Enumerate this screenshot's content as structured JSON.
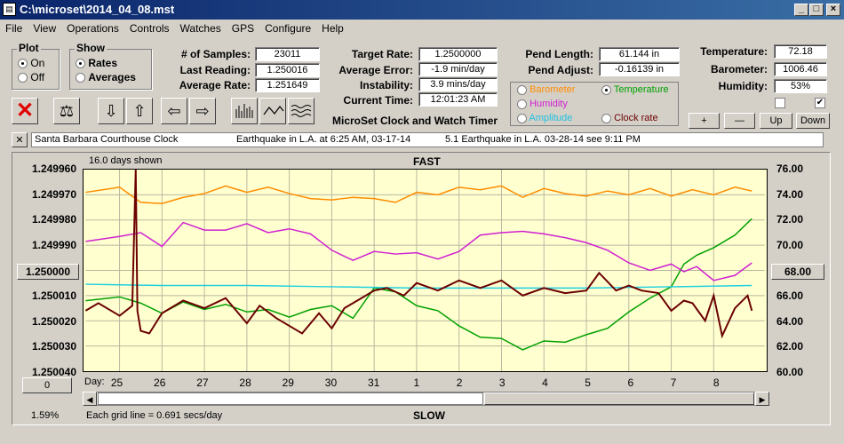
{
  "window": {
    "title": "C:\\microset\\2014_04_08.mst"
  },
  "menu": [
    "File",
    "View",
    "Operations",
    "Controls",
    "Watches",
    "GPS",
    "Configure",
    "Help"
  ],
  "plot_group": {
    "title": "Plot",
    "on": "On",
    "off": "Off"
  },
  "show_group": {
    "title": "Show",
    "rates": "Rates",
    "averages": "Averages"
  },
  "stats": {
    "samples_label": "# of Samples:",
    "samples": "23011",
    "last_label": "Last Reading:",
    "last": "1.250016",
    "avg_label": "Average Rate:",
    "avg": "1.251649"
  },
  "rates": {
    "target_label": "Target Rate:",
    "target": "1.2500000",
    "error_label": "Average Error:",
    "error": "-1.9 min/day",
    "instab_label": "Instability:",
    "instab": "3.9 mins/day",
    "time_label": "Current Time:",
    "time": "12:01:23 AM"
  },
  "pend": {
    "length_label": "Pend Length:",
    "length": "61.144 in",
    "adjust_label": "Pend Adjust:",
    "adjust": "-0.16139 in"
  },
  "env": {
    "temp_label": "Temperature:",
    "temp": "72.18",
    "baro_label": "Barometer:",
    "baro": "1006.46",
    "hum_label": "Humidity:",
    "hum": "53%"
  },
  "sensor_select": {
    "barometer": "Barometer",
    "temperature": "Temperature",
    "humidity": "Humidity",
    "amplitude": "Amplitude",
    "clock_rate": "Clock rate"
  },
  "app_title": "MicroSet Clock and Watch Timer",
  "adjust_buttons": {
    "plus": "+",
    "minus": "—",
    "up": "Up",
    "down": "Down"
  },
  "notes": {
    "clock": "Santa Barbara Courthouse Clock",
    "note1": "Earthquake in L.A. at 6:25 AM, 03-17-14",
    "note2": "5.1 Earthquake in L.A. 03-28-14  see 9:11 PM",
    "close": "✕"
  },
  "chart_labels": {
    "days_shown": "16.0 days shown",
    "fast": "FAST",
    "slow": "SLOW",
    "day_label": "Day:",
    "grid_note": "Each grid line = 0.691 secs/day",
    "percent": "1.59%",
    "left_box": "1.250000",
    "right_box": "68.00",
    "zero_box": "0"
  },
  "colors": {
    "barometer": "#ff8c00",
    "temperature": "#00a000",
    "humidity": "#d020d0",
    "amplitude": "#20d0e0",
    "rate": "#6b0000"
  },
  "chart_data": {
    "type": "line",
    "x_label": "Day:",
    "x_ticks": [
      "25",
      "26",
      "27",
      "28",
      "29",
      "30",
      "31",
      "1",
      "2",
      "3",
      "4",
      "5",
      "6",
      "7",
      "8"
    ],
    "y_left_ticks": [
      "1.249960",
      "1.249970",
      "1.249980",
      "1.249990",
      "1.250000",
      "1.250010",
      "1.250020",
      "1.250030",
      "1.250040"
    ],
    "y_right_ticks": [
      "76.00",
      "74.00",
      "72.00",
      "70.00",
      "68.00",
      "66.00",
      "64.00",
      "62.00",
      "60.00"
    ],
    "y_left_range": [
      1.24996,
      1.25004
    ],
    "y_right_range": [
      60,
      76
    ],
    "x_range": [
      24.2,
      40.2
    ],
    "grid": true,
    "series": [
      {
        "name": "Barometer",
        "color": "#ff8c00",
        "axis": "right",
        "x": [
          24.2,
          25.0,
          25.5,
          26.0,
          26.5,
          27.0,
          27.5,
          28.0,
          28.5,
          29.0,
          29.5,
          30.0,
          30.5,
          31.0,
          31.5,
          32.0,
          32.5,
          33.0,
          33.5,
          34.0,
          34.5,
          35.0,
          35.5,
          36.0,
          36.5,
          37.0,
          37.5,
          38.0,
          38.5,
          39.0,
          39.5,
          39.9
        ],
        "y": [
          74.2,
          74.6,
          73.4,
          73.3,
          73.8,
          74.1,
          74.7,
          74.2,
          74.6,
          74.1,
          73.7,
          73.6,
          73.8,
          73.7,
          73.4,
          74.2,
          74.0,
          74.6,
          74.4,
          74.7,
          73.8,
          74.5,
          74.1,
          73.9,
          74.3,
          74.0,
          74.5,
          73.9,
          74.4,
          74.0,
          74.6,
          74.3
        ]
      },
      {
        "name": "Temperature",
        "color": "#00a000",
        "axis": "right",
        "x": [
          24.2,
          25.0,
          25.5,
          26.0,
          26.5,
          27.0,
          27.5,
          28.0,
          28.5,
          29.0,
          29.5,
          30.0,
          30.5,
          31.0,
          31.5,
          32.0,
          32.5,
          33.0,
          33.5,
          34.0,
          34.5,
          35.0,
          35.5,
          36.0,
          36.5,
          37.0,
          37.5,
          38.0,
          38.3,
          38.6,
          39.0,
          39.5,
          39.9
        ],
        "y": [
          65.6,
          65.9,
          65.4,
          64.6,
          65.5,
          64.9,
          65.3,
          64.7,
          64.9,
          64.3,
          64.9,
          65.2,
          64.2,
          66.6,
          66.3,
          65.2,
          64.8,
          63.6,
          62.7,
          62.6,
          61.7,
          62.4,
          62.3,
          62.9,
          63.4,
          64.7,
          65.8,
          66.7,
          68.5,
          69.2,
          69.8,
          70.8,
          72.1
        ]
      },
      {
        "name": "Humidity",
        "color": "#d020d0",
        "axis": "right",
        "x": [
          24.2,
          25.0,
          25.5,
          26.0,
          26.5,
          27.0,
          27.5,
          28.0,
          28.5,
          29.0,
          29.5,
          30.0,
          30.5,
          31.0,
          31.5,
          32.0,
          32.5,
          33.0,
          33.5,
          34.0,
          34.5,
          35.0,
          35.5,
          36.0,
          36.5,
          37.0,
          37.5,
          38.0,
          38.3,
          38.6,
          39.0,
          39.5,
          39.9
        ],
        "y": [
          70.3,
          70.7,
          71.0,
          69.9,
          71.8,
          71.2,
          71.2,
          71.7,
          71.0,
          71.3,
          70.9,
          69.6,
          68.8,
          69.5,
          69.3,
          69.4,
          68.9,
          69.5,
          70.8,
          71.0,
          71.1,
          70.9,
          70.6,
          70.2,
          69.6,
          68.6,
          68.0,
          68.5,
          67.9,
          68.3,
          67.2,
          67.6,
          68.6
        ]
      },
      {
        "name": "Amplitude",
        "color": "#20d0e0",
        "axis": "right",
        "x": [
          24.2,
          26.0,
          28.0,
          30.0,
          32.0,
          34.0,
          36.0,
          38.0,
          39.9
        ],
        "y": [
          66.9,
          66.8,
          66.8,
          66.7,
          66.6,
          66.6,
          66.6,
          66.7,
          66.8
        ]
      },
      {
        "name": "Clock rate",
        "color": "#6b0000",
        "axis": "left",
        "x": [
          24.2,
          24.5,
          25.0,
          25.3,
          25.38,
          25.42,
          25.5,
          25.7,
          26.0,
          26.5,
          27.0,
          27.5,
          28.0,
          28.3,
          28.7,
          29.0,
          29.3,
          29.7,
          30.0,
          30.3,
          30.7,
          31.0,
          31.3,
          31.7,
          32.0,
          32.5,
          33.0,
          33.5,
          34.0,
          34.5,
          35.0,
          35.5,
          36.0,
          36.3,
          36.7,
          37.0,
          37.3,
          37.7,
          38.0,
          38.3,
          38.5,
          38.8,
          39.0,
          39.2,
          39.5,
          39.8,
          39.9
        ],
        "y": [
          1.250016,
          1.250013,
          1.250018,
          1.250014,
          1.24996,
          1.250016,
          1.250024,
          1.250025,
          1.250017,
          1.250012,
          1.250015,
          1.250011,
          1.250021,
          1.250014,
          1.250019,
          1.250022,
          1.250025,
          1.250017,
          1.250023,
          1.250015,
          1.250011,
          1.250008,
          1.250007,
          1.25001,
          1.250005,
          1.250008,
          1.250004,
          1.250007,
          1.250004,
          1.25001,
          1.250007,
          1.250009,
          1.250008,
          1.250001,
          1.250008,
          1.250006,
          1.250008,
          1.250009,
          1.250016,
          1.250012,
          1.250013,
          1.25002,
          1.25001,
          1.250026,
          1.250015,
          1.25001,
          1.250016
        ]
      }
    ]
  }
}
